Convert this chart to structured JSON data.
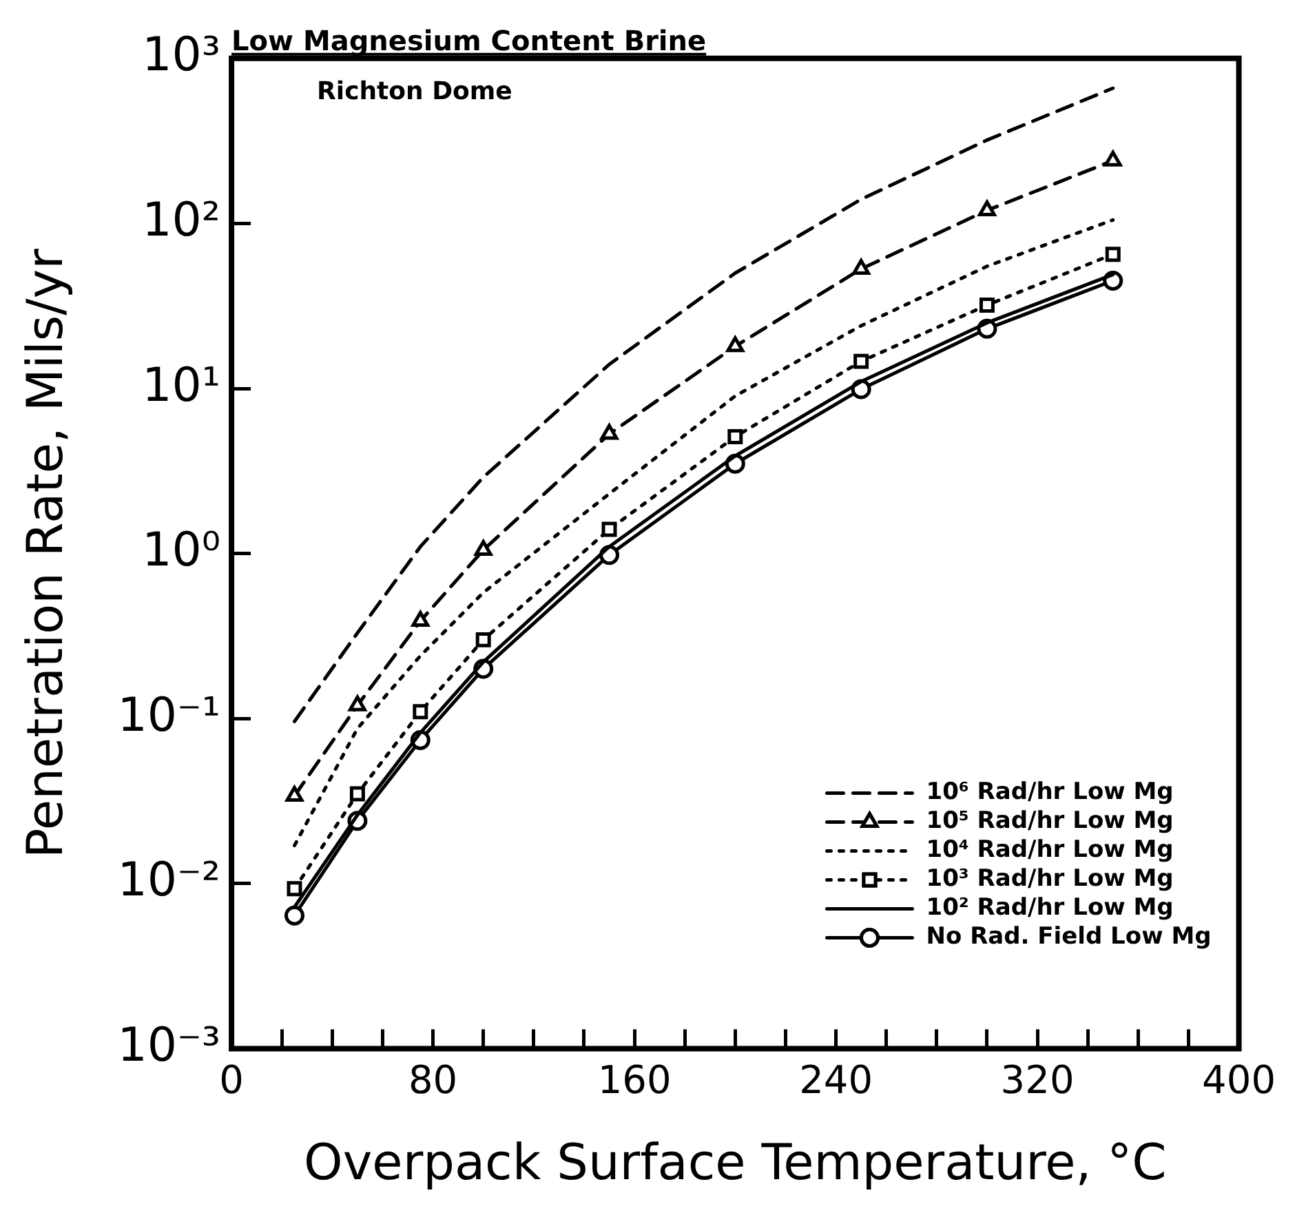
{
  "chart_data": {
    "type": "line",
    "title": "Low Magnesium Content Brine",
    "subtitle": "Richton Dome",
    "xlabel": "Overpack Surface Temperature, °C",
    "ylabel": "Penetration Rate, Mils/yr",
    "x": [
      25,
      50,
      75,
      100,
      150,
      200,
      250,
      300,
      350
    ],
    "series": [
      {
        "name": "10⁶ Rad/hr Low Mg",
        "color": "#000000",
        "line_style": "dashed",
        "marker": "none",
        "values": [
          0.096,
          0.33,
          1.1,
          2.9,
          14,
          50,
          140,
          320,
          660
        ]
      },
      {
        "name": "10⁵ Rad/hr Low Mg",
        "color": "#000000",
        "line_style": "dashed",
        "marker": "triangle",
        "values": [
          0.034,
          0.12,
          0.39,
          1.05,
          5.3,
          18,
          53,
          120,
          240
        ]
      },
      {
        "name": "10⁴ Rad/hr Low Mg",
        "color": "#000000",
        "line_style": "dotted",
        "marker": "none",
        "values": [
          0.017,
          0.087,
          0.24,
          0.58,
          2.3,
          9,
          24,
          55,
          105
        ]
      },
      {
        "name": "10³ Rad/hr Low Mg",
        "color": "#000000",
        "line_style": "dotted",
        "marker": "square",
        "values": [
          0.0093,
          0.035,
          0.11,
          0.3,
          1.4,
          5.1,
          14.6,
          32,
          65
        ]
      },
      {
        "name": "10² Rad/hr Low Mg",
        "color": "#000000",
        "line_style": "solid",
        "marker": "none",
        "values": [
          0.0072,
          0.026,
          0.082,
          0.22,
          1.1,
          3.9,
          11,
          25,
          49
        ]
      },
      {
        "name": "No Rad. Field Low Mg",
        "color": "#000000",
        "line_style": "solid",
        "marker": "circle",
        "values": [
          0.0064,
          0.024,
          0.074,
          0.2,
          0.98,
          3.5,
          9.9,
          23,
          45
        ]
      }
    ],
    "log": "y",
    "xlim": [
      0,
      400
    ],
    "ylim": [
      0.001,
      1000
    ],
    "xticks": [
      0,
      {
        "value": 20,
        "label": null
      },
      {
        "value": 40,
        "label": null
      },
      {
        "value": 60,
        "label": null
      },
      80,
      {
        "value": 100,
        "label": null
      },
      {
        "value": 120,
        "label": null
      },
      {
        "value": 140,
        "label": null
      },
      160,
      {
        "value": 180,
        "label": null
      },
      {
        "value": 200,
        "label": null
      },
      {
        "value": 220,
        "label": null
      },
      240,
      {
        "value": 260,
        "label": null
      },
      {
        "value": 280,
        "label": null
      },
      {
        "value": 300,
        "label": null
      },
      320,
      {
        "value": 340,
        "label": null
      },
      {
        "value": 360,
        "label": null
      },
      {
        "value": 380,
        "label": null
      },
      400
    ],
    "yticks": [
      {
        "value": 0.001,
        "label": "10⁻³"
      },
      {
        "value": 0.01,
        "label": "10⁻²"
      },
      {
        "value": 0.1,
        "label": "10⁻¹"
      },
      {
        "value": 1,
        "label": "10⁰"
      },
      {
        "value": 10,
        "label": "10¹"
      },
      {
        "value": 100,
        "label": "10²"
      },
      {
        "value": 1000,
        "label": "10³"
      }
    ],
    "grid": false,
    "legend": "bottom right"
  }
}
